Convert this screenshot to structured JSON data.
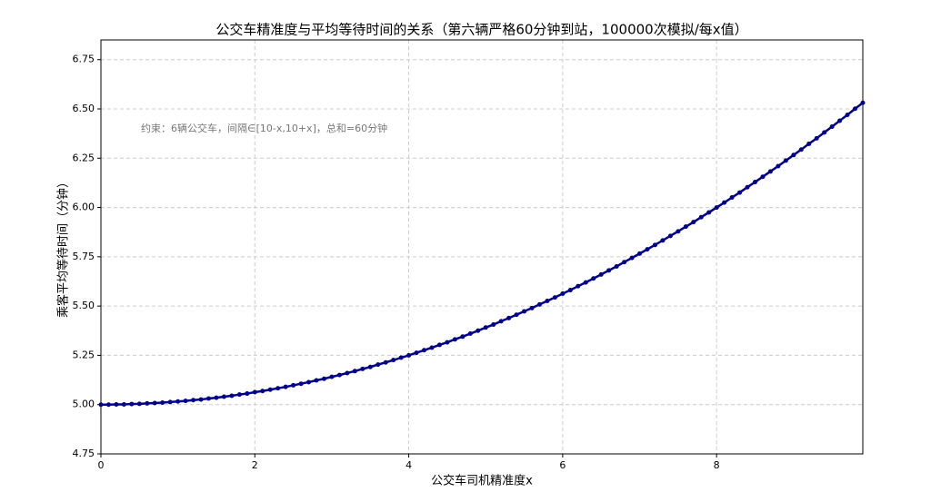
{
  "chart_data": {
    "type": "line",
    "title": "公交车精准度与平均等待时间的关系（第六辆严格60分钟到站，100000次模拟/每x值）",
    "x_label": "公交车司机精准度x",
    "y_label": "乘客平均等待时间（分钟）",
    "annotation": "约束：6辆公交车，间隔∈[10-x,10+x]，总和=60分钟",
    "grid": true,
    "xlim": [
      0,
      9.9
    ],
    "ylim": [
      4.75,
      6.85
    ],
    "xticks": [
      0,
      2,
      4,
      6,
      8
    ],
    "yticks": [
      4.75,
      {
        "value": 5,
        "label": "5.00"
      },
      5.25,
      {
        "value": 5.5,
        "label": "5.50"
      },
      5.75,
      {
        "value": 6,
        "label": "6.00"
      },
      6.25,
      {
        "value": 6.5,
        "label": "6.50"
      },
      6.75
    ],
    "x": [
      0,
      0.1,
      0.2,
      0.3,
      0.4,
      0.5,
      0.6,
      0.7,
      0.8,
      0.9,
      1,
      1.1,
      1.2,
      1.3,
      1.4,
      1.5,
      1.6,
      1.7,
      1.8,
      1.9,
      2,
      2.1,
      2.2,
      2.3,
      2.4,
      2.5,
      2.6,
      2.7,
      2.8,
      2.9,
      3,
      3.1,
      3.2,
      3.3,
      3.4,
      3.5,
      3.6,
      3.7,
      3.8,
      3.9,
      4,
      4.1,
      4.2,
      4.3,
      4.4,
      4.5,
      4.6,
      4.7,
      4.8,
      4.9,
      5,
      5.1,
      5.2,
      5.3,
      5.4,
      5.5,
      5.6,
      5.7,
      5.8,
      5.9,
      6,
      6.1,
      6.2,
      6.3,
      6.4,
      6.5,
      6.6,
      6.7,
      6.8,
      6.9,
      7,
      7.1,
      7.2,
      7.3,
      7.4,
      7.5,
      7.6,
      7.7,
      7.8,
      7.9,
      8,
      8.1,
      8.2,
      8.3,
      8.4,
      8.5,
      8.6,
      8.7,
      8.8,
      8.9,
      9,
      9.1,
      9.2,
      9.3,
      9.4,
      9.5,
      9.6,
      9.7,
      9.8,
      9.9
    ],
    "series": [
      {
        "color": "#00008b",
        "values": [
          5.0,
          5.0,
          5.001,
          5.001,
          5.003,
          5.004,
          5.006,
          5.008,
          5.01,
          5.013,
          5.016,
          5.019,
          5.023,
          5.026,
          5.031,
          5.035,
          5.04,
          5.045,
          5.051,
          5.056,
          5.063,
          5.069,
          5.076,
          5.083,
          5.09,
          5.098,
          5.106,
          5.114,
          5.123,
          5.131,
          5.141,
          5.15,
          5.16,
          5.17,
          5.181,
          5.191,
          5.203,
          5.214,
          5.226,
          5.238,
          5.25,
          5.263,
          5.276,
          5.289,
          5.303,
          5.316,
          5.331,
          5.345,
          5.36,
          5.375,
          5.391,
          5.406,
          5.423,
          5.439,
          5.456,
          5.473,
          5.49,
          5.508,
          5.526,
          5.544,
          5.563,
          5.581,
          5.601,
          5.62,
          5.64,
          5.66,
          5.681,
          5.701,
          5.723,
          5.744,
          5.766,
          5.788,
          5.81,
          5.833,
          5.856,
          5.879,
          5.903,
          5.926,
          5.951,
          5.975,
          6.0,
          6.025,
          6.051,
          6.076,
          6.103,
          6.129,
          6.156,
          6.183,
          6.21,
          6.238,
          6.266,
          6.294,
          6.323,
          6.351,
          6.381,
          6.41,
          6.44,
          6.47,
          6.501,
          6.531
        ]
      }
    ]
  }
}
